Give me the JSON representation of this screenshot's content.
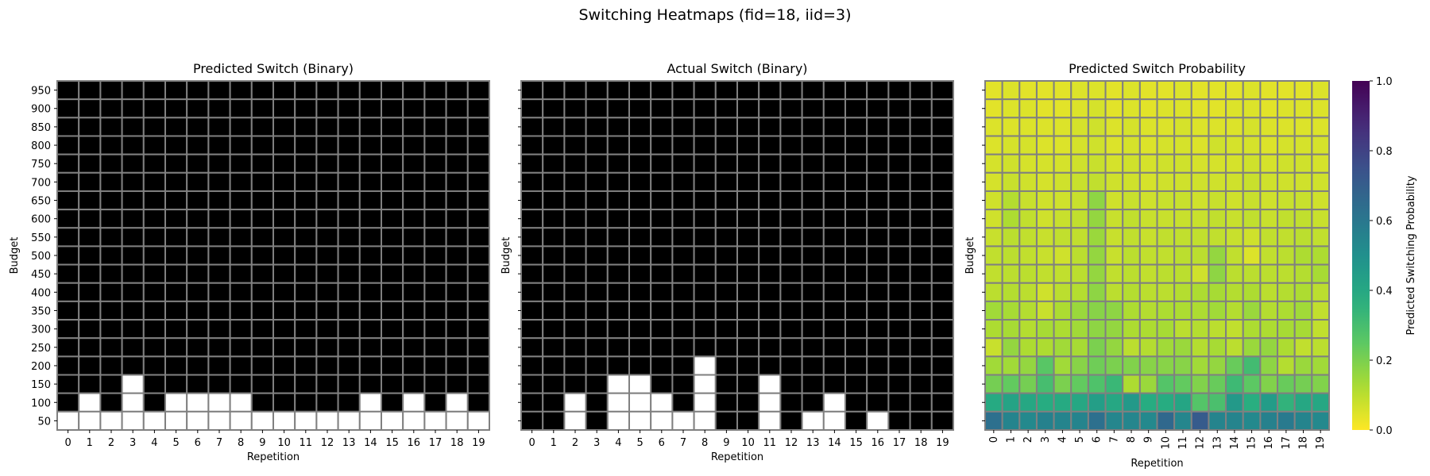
{
  "figure": {
    "title": "Switching Heatmaps (fid=18, iid=3)"
  },
  "chart_data": [
    {
      "type": "heatmap",
      "title": "Predicted Switch (Binary)",
      "xlabel": "Repetition",
      "ylabel": "Budget",
      "x": [
        0,
        1,
        2,
        3,
        4,
        5,
        6,
        7,
        8,
        9,
        10,
        11,
        12,
        13,
        14,
        15,
        16,
        17,
        18,
        19
      ],
      "y": [
        950,
        900,
        850,
        800,
        750,
        700,
        650,
        600,
        550,
        500,
        450,
        400,
        350,
        300,
        250,
        200,
        150,
        100,
        50
      ],
      "colormap": {
        "0": "#000000",
        "1": "#ffffff"
      },
      "grid_color": "#808080",
      "values": [
        [
          0,
          0,
          0,
          0,
          0,
          0,
          0,
          0,
          0,
          0,
          0,
          0,
          0,
          0,
          0,
          0,
          0,
          0,
          0,
          0
        ],
        [
          0,
          0,
          0,
          0,
          0,
          0,
          0,
          0,
          0,
          0,
          0,
          0,
          0,
          0,
          0,
          0,
          0,
          0,
          0,
          0
        ],
        [
          0,
          0,
          0,
          0,
          0,
          0,
          0,
          0,
          0,
          0,
          0,
          0,
          0,
          0,
          0,
          0,
          0,
          0,
          0,
          0
        ],
        [
          0,
          0,
          0,
          0,
          0,
          0,
          0,
          0,
          0,
          0,
          0,
          0,
          0,
          0,
          0,
          0,
          0,
          0,
          0,
          0
        ],
        [
          0,
          0,
          0,
          0,
          0,
          0,
          0,
          0,
          0,
          0,
          0,
          0,
          0,
          0,
          0,
          0,
          0,
          0,
          0,
          0
        ],
        [
          0,
          0,
          0,
          0,
          0,
          0,
          0,
          0,
          0,
          0,
          0,
          0,
          0,
          0,
          0,
          0,
          0,
          0,
          0,
          0
        ],
        [
          0,
          0,
          0,
          0,
          0,
          0,
          0,
          0,
          0,
          0,
          0,
          0,
          0,
          0,
          0,
          0,
          0,
          0,
          0,
          0
        ],
        [
          0,
          0,
          0,
          0,
          0,
          0,
          0,
          0,
          0,
          0,
          0,
          0,
          0,
          0,
          0,
          0,
          0,
          0,
          0,
          0
        ],
        [
          0,
          0,
          0,
          0,
          0,
          0,
          0,
          0,
          0,
          0,
          0,
          0,
          0,
          0,
          0,
          0,
          0,
          0,
          0,
          0
        ],
        [
          0,
          0,
          0,
          0,
          0,
          0,
          0,
          0,
          0,
          0,
          0,
          0,
          0,
          0,
          0,
          0,
          0,
          0,
          0,
          0
        ],
        [
          0,
          0,
          0,
          0,
          0,
          0,
          0,
          0,
          0,
          0,
          0,
          0,
          0,
          0,
          0,
          0,
          0,
          0,
          0,
          0
        ],
        [
          0,
          0,
          0,
          0,
          0,
          0,
          0,
          0,
          0,
          0,
          0,
          0,
          0,
          0,
          0,
          0,
          0,
          0,
          0,
          0
        ],
        [
          0,
          0,
          0,
          0,
          0,
          0,
          0,
          0,
          0,
          0,
          0,
          0,
          0,
          0,
          0,
          0,
          0,
          0,
          0,
          0
        ],
        [
          0,
          0,
          0,
          0,
          0,
          0,
          0,
          0,
          0,
          0,
          0,
          0,
          0,
          0,
          0,
          0,
          0,
          0,
          0,
          0
        ],
        [
          0,
          0,
          0,
          0,
          0,
          0,
          0,
          0,
          0,
          0,
          0,
          0,
          0,
          0,
          0,
          0,
          0,
          0,
          0,
          0
        ],
        [
          0,
          0,
          0,
          0,
          0,
          0,
          0,
          0,
          0,
          0,
          0,
          0,
          0,
          0,
          0,
          0,
          0,
          0,
          0,
          0
        ],
        [
          0,
          0,
          0,
          1,
          0,
          0,
          0,
          0,
          0,
          0,
          0,
          0,
          0,
          0,
          0,
          0,
          0,
          0,
          0,
          0
        ],
        [
          0,
          1,
          0,
          1,
          0,
          1,
          1,
          1,
          1,
          0,
          0,
          0,
          0,
          0,
          1,
          0,
          1,
          0,
          1,
          0
        ],
        [
          1,
          1,
          1,
          1,
          1,
          1,
          1,
          1,
          1,
          1,
          1,
          1,
          1,
          1,
          1,
          1,
          1,
          1,
          1,
          1
        ]
      ]
    },
    {
      "type": "heatmap",
      "title": "Actual Switch (Binary)",
      "xlabel": "Repetition",
      "ylabel": "Budget",
      "x": [
        0,
        1,
        2,
        3,
        4,
        5,
        6,
        7,
        8,
        9,
        10,
        11,
        12,
        13,
        14,
        15,
        16,
        17,
        18,
        19
      ],
      "y": [
        950,
        900,
        850,
        800,
        750,
        700,
        650,
        600,
        550,
        500,
        450,
        400,
        350,
        300,
        250,
        200,
        150,
        100,
        50
      ],
      "colormap": {
        "0": "#000000",
        "1": "#ffffff"
      },
      "grid_color": "#808080",
      "values": [
        [
          0,
          0,
          0,
          0,
          0,
          0,
          0,
          0,
          0,
          0,
          0,
          0,
          0,
          0,
          0,
          0,
          0,
          0,
          0,
          0
        ],
        [
          0,
          0,
          0,
          0,
          0,
          0,
          0,
          0,
          0,
          0,
          0,
          0,
          0,
          0,
          0,
          0,
          0,
          0,
          0,
          0
        ],
        [
          0,
          0,
          0,
          0,
          0,
          0,
          0,
          0,
          0,
          0,
          0,
          0,
          0,
          0,
          0,
          0,
          0,
          0,
          0,
          0
        ],
        [
          0,
          0,
          0,
          0,
          0,
          0,
          0,
          0,
          0,
          0,
          0,
          0,
          0,
          0,
          0,
          0,
          0,
          0,
          0,
          0
        ],
        [
          0,
          0,
          0,
          0,
          0,
          0,
          0,
          0,
          0,
          0,
          0,
          0,
          0,
          0,
          0,
          0,
          0,
          0,
          0,
          0
        ],
        [
          0,
          0,
          0,
          0,
          0,
          0,
          0,
          0,
          0,
          0,
          0,
          0,
          0,
          0,
          0,
          0,
          0,
          0,
          0,
          0
        ],
        [
          0,
          0,
          0,
          0,
          0,
          0,
          0,
          0,
          0,
          0,
          0,
          0,
          0,
          0,
          0,
          0,
          0,
          0,
          0,
          0
        ],
        [
          0,
          0,
          0,
          0,
          0,
          0,
          0,
          0,
          0,
          0,
          0,
          0,
          0,
          0,
          0,
          0,
          0,
          0,
          0,
          0
        ],
        [
          0,
          0,
          0,
          0,
          0,
          0,
          0,
          0,
          0,
          0,
          0,
          0,
          0,
          0,
          0,
          0,
          0,
          0,
          0,
          0
        ],
        [
          0,
          0,
          0,
          0,
          0,
          0,
          0,
          0,
          0,
          0,
          0,
          0,
          0,
          0,
          0,
          0,
          0,
          0,
          0,
          0
        ],
        [
          0,
          0,
          0,
          0,
          0,
          0,
          0,
          0,
          0,
          0,
          0,
          0,
          0,
          0,
          0,
          0,
          0,
          0,
          0,
          0
        ],
        [
          0,
          0,
          0,
          0,
          0,
          0,
          0,
          0,
          0,
          0,
          0,
          0,
          0,
          0,
          0,
          0,
          0,
          0,
          0,
          0
        ],
        [
          0,
          0,
          0,
          0,
          0,
          0,
          0,
          0,
          0,
          0,
          0,
          0,
          0,
          0,
          0,
          0,
          0,
          0,
          0,
          0
        ],
        [
          0,
          0,
          0,
          0,
          0,
          0,
          0,
          0,
          0,
          0,
          0,
          0,
          0,
          0,
          0,
          0,
          0,
          0,
          0,
          0
        ],
        [
          0,
          0,
          0,
          0,
          0,
          0,
          0,
          0,
          0,
          0,
          0,
          0,
          0,
          0,
          0,
          0,
          0,
          0,
          0,
          0
        ],
        [
          0,
          0,
          0,
          0,
          0,
          0,
          0,
          0,
          1,
          0,
          0,
          0,
          0,
          0,
          0,
          0,
          0,
          0,
          0,
          0
        ],
        [
          0,
          0,
          0,
          0,
          1,
          1,
          0,
          0,
          1,
          0,
          0,
          1,
          0,
          0,
          0,
          0,
          0,
          0,
          0,
          0
        ],
        [
          0,
          0,
          1,
          0,
          1,
          1,
          1,
          0,
          1,
          0,
          0,
          1,
          0,
          0,
          1,
          0,
          0,
          0,
          0,
          0
        ],
        [
          0,
          0,
          1,
          0,
          1,
          1,
          1,
          1,
          1,
          0,
          0,
          1,
          0,
          1,
          1,
          0,
          1,
          0,
          0,
          0
        ]
      ]
    },
    {
      "type": "heatmap",
      "title": "Predicted Switch Probability",
      "xlabel": "Repetition",
      "ylabel": "Budget",
      "x": [
        0,
        1,
        2,
        3,
        4,
        5,
        6,
        7,
        8,
        9,
        10,
        11,
        12,
        13,
        14,
        15,
        16,
        17,
        18,
        19
      ],
      "y": [
        950,
        900,
        850,
        800,
        750,
        700,
        650,
        600,
        550,
        500,
        450,
        400,
        350,
        300,
        250,
        200,
        150,
        100,
        50
      ],
      "colormap": "viridis_r",
      "vmin": 0.0,
      "vmax": 1.0,
      "grid_color": "#808080",
      "colorbar": {
        "label": "Predicted Switching Probability",
        "ticks": [
          0.0,
          0.2,
          0.4,
          0.6,
          0.8,
          1.0
        ],
        "tick_labels": [
          "0.0",
          "0.2",
          "0.4",
          "0.6",
          "0.8",
          "1.0"
        ]
      },
      "values": [
        [
          0.04,
          0.05,
          0.04,
          0.04,
          0.04,
          0.05,
          0.05,
          0.04,
          0.05,
          0.04,
          0.04,
          0.05,
          0.04,
          0.04,
          0.04,
          0.05,
          0.04,
          0.04,
          0.04,
          0.05
        ],
        [
          0.04,
          0.05,
          0.05,
          0.04,
          0.04,
          0.05,
          0.06,
          0.04,
          0.05,
          0.04,
          0.05,
          0.05,
          0.04,
          0.04,
          0.05,
          0.05,
          0.04,
          0.05,
          0.05,
          0.05
        ],
        [
          0.05,
          0.05,
          0.05,
          0.05,
          0.05,
          0.06,
          0.07,
          0.05,
          0.06,
          0.05,
          0.05,
          0.06,
          0.05,
          0.05,
          0.05,
          0.06,
          0.05,
          0.05,
          0.05,
          0.05
        ],
        [
          0.05,
          0.06,
          0.06,
          0.05,
          0.05,
          0.06,
          0.07,
          0.05,
          0.06,
          0.05,
          0.06,
          0.06,
          0.05,
          0.07,
          0.06,
          0.06,
          0.05,
          0.06,
          0.06,
          0.06
        ],
        [
          0.06,
          0.07,
          0.06,
          0.06,
          0.06,
          0.07,
          0.08,
          0.06,
          0.07,
          0.06,
          0.07,
          0.07,
          0.06,
          0.06,
          0.06,
          0.07,
          0.06,
          0.07,
          0.07,
          0.06
        ],
        [
          0.06,
          0.08,
          0.07,
          0.06,
          0.07,
          0.08,
          0.09,
          0.07,
          0.07,
          0.06,
          0.07,
          0.07,
          0.07,
          0.07,
          0.07,
          0.08,
          0.07,
          0.07,
          0.07,
          0.07
        ],
        [
          0.07,
          0.11,
          0.08,
          0.07,
          0.07,
          0.08,
          0.17,
          0.07,
          0.08,
          0.07,
          0.08,
          0.08,
          0.07,
          0.08,
          0.07,
          0.08,
          0.07,
          0.08,
          0.08,
          0.07
        ],
        [
          0.07,
          0.12,
          0.09,
          0.07,
          0.08,
          0.09,
          0.16,
          0.08,
          0.09,
          0.08,
          0.08,
          0.08,
          0.08,
          0.09,
          0.08,
          0.09,
          0.08,
          0.09,
          0.09,
          0.08
        ],
        [
          0.08,
          0.1,
          0.09,
          0.08,
          0.09,
          0.09,
          0.15,
          0.08,
          0.09,
          0.08,
          0.09,
          0.09,
          0.09,
          0.09,
          0.08,
          0.07,
          0.09,
          0.09,
          0.1,
          0.09
        ],
        [
          0.09,
          0.1,
          0.09,
          0.08,
          0.07,
          0.1,
          0.16,
          0.08,
          0.1,
          0.09,
          0.09,
          0.1,
          0.1,
          0.16,
          0.09,
          0.05,
          0.09,
          0.1,
          0.12,
          0.12
        ],
        [
          0.09,
          0.1,
          0.1,
          0.09,
          0.09,
          0.1,
          0.16,
          0.09,
          0.1,
          0.09,
          0.1,
          0.1,
          0.07,
          0.17,
          0.1,
          0.1,
          0.1,
          0.1,
          0.11,
          0.13
        ],
        [
          0.1,
          0.11,
          0.1,
          0.07,
          0.1,
          0.11,
          0.17,
          0.1,
          0.11,
          0.1,
          0.1,
          0.11,
          0.12,
          0.13,
          0.11,
          0.12,
          0.1,
          0.11,
          0.12,
          0.1
        ],
        [
          0.14,
          0.13,
          0.11,
          0.08,
          0.12,
          0.15,
          0.18,
          0.17,
          0.12,
          0.11,
          0.12,
          0.12,
          0.12,
          0.14,
          0.11,
          0.15,
          0.11,
          0.12,
          0.14,
          0.09
        ],
        [
          0.12,
          0.13,
          0.11,
          0.13,
          0.12,
          0.14,
          0.17,
          0.16,
          0.12,
          0.12,
          0.13,
          0.1,
          0.11,
          0.1,
          0.09,
          0.12,
          0.12,
          0.13,
          0.13,
          0.09
        ],
        [
          0.08,
          0.16,
          0.12,
          0.12,
          0.14,
          0.13,
          0.2,
          0.16,
          0.1,
          0.11,
          0.14,
          0.15,
          0.11,
          0.13,
          0.1,
          0.15,
          0.16,
          0.12,
          0.09,
          0.1
        ],
        [
          0.14,
          0.14,
          0.16,
          0.26,
          0.14,
          0.18,
          0.22,
          0.2,
          0.19,
          0.18,
          0.18,
          0.18,
          0.14,
          0.16,
          0.23,
          0.31,
          0.17,
          0.11,
          0.15,
          0.14
        ],
        [
          0.21,
          0.24,
          0.21,
          0.3,
          0.2,
          0.24,
          0.28,
          0.33,
          0.12,
          0.15,
          0.27,
          0.24,
          0.19,
          0.23,
          0.32,
          0.25,
          0.19,
          0.23,
          0.21,
          0.19
        ],
        [
          0.39,
          0.42,
          0.4,
          0.38,
          0.39,
          0.4,
          0.44,
          0.4,
          0.46,
          0.38,
          0.38,
          0.41,
          0.27,
          0.29,
          0.46,
          0.37,
          0.45,
          0.35,
          0.4,
          0.4
        ],
        [
          0.63,
          0.55,
          0.53,
          0.56,
          0.55,
          0.55,
          0.63,
          0.54,
          0.54,
          0.53,
          0.66,
          0.54,
          0.71,
          0.55,
          0.55,
          0.53,
          0.56,
          0.59,
          0.55,
          0.53
        ]
      ]
    }
  ]
}
